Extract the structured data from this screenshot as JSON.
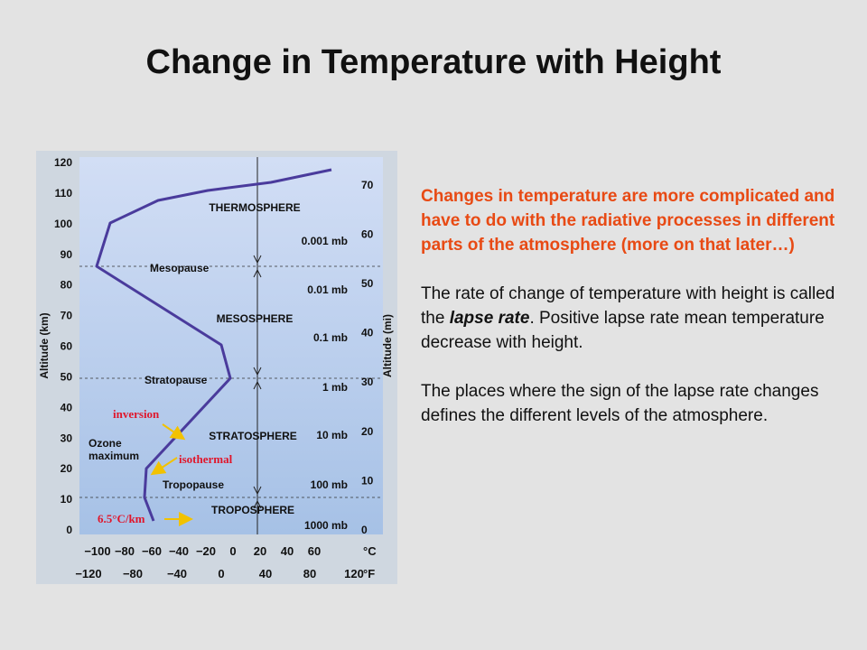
{
  "slide": {
    "title": "Change in Temperature with Height"
  },
  "figure": {
    "left_axis_label": "Altitude (km)",
    "right_axis_label": "Altitude (mi)",
    "km_ticks": [
      "0",
      "10",
      "20",
      "30",
      "40",
      "50",
      "60",
      "70",
      "80",
      "90",
      "100",
      "110",
      "120"
    ],
    "mi_ticks": [
      "0",
      "10",
      "20",
      "30",
      "40",
      "50",
      "60",
      "70"
    ],
    "celsius_ticks": [
      "−100",
      "−80",
      "−60",
      "−40",
      "−20",
      "0",
      "20",
      "40",
      "60"
    ],
    "celsius_unit": "°C",
    "fahrenheit_ticks": [
      "−120",
      "−80",
      "−40",
      "0",
      "40",
      "80",
      "120"
    ],
    "fahrenheit_unit": "°F",
    "layers": [
      "THERMOSPHERE",
      "MESOSPHERE",
      "STRATOSPHERE",
      "TROPOSPHERE"
    ],
    "pauses": [
      "Mesopause",
      "Stratopause",
      "Tropopause"
    ],
    "pressures": [
      "0.001 mb",
      "0.01 mb",
      "0.1 mb",
      "1 mb",
      "10 mb",
      "100 mb",
      "1000 mb"
    ],
    "ozone": [
      "Ozone",
      "maximum"
    ],
    "annotations": {
      "inversion": "inversion",
      "isothermal": "isothermal",
      "lapse_rate": "6.5°C/km"
    },
    "colors": {
      "curve": "#4a3b9c",
      "annotation": "#e0162b",
      "arrow": "#f2c200",
      "panel_top": "#cfdcf5",
      "panel_bottom": "#a9c3e8"
    }
  },
  "text": {
    "para1": "Changes in temperature are more complicated and have to do with the radiative processes in different parts of the atmosphere (more on that later…)",
    "para2_before": "The rate of change of temperature with height is called the ",
    "para2_em": "lapse rate",
    "para2_after": ". Positive lapse rate mean temperature decrease with height.",
    "para3": "The places where the sign of the lapse rate changes defines the different levels of the atmosphere."
  }
}
